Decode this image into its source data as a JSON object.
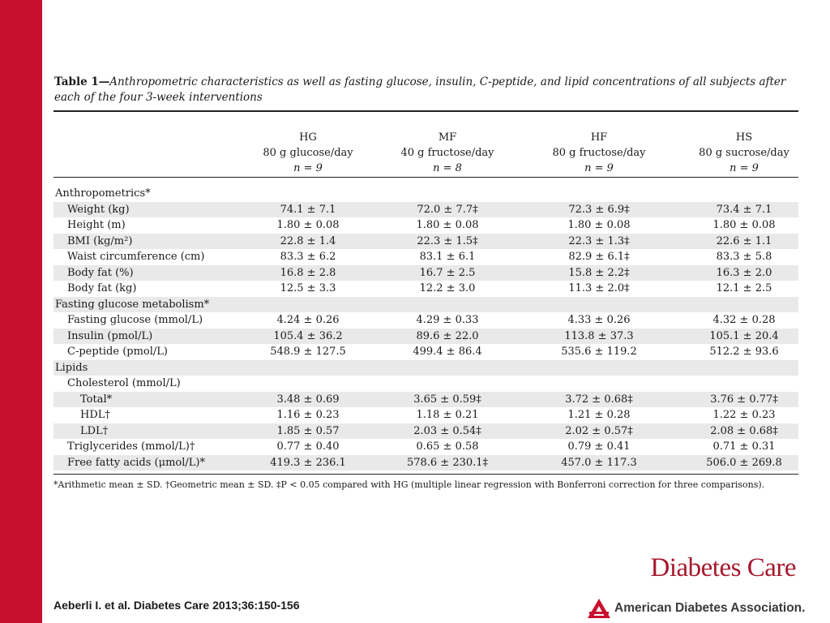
{
  "caption": {
    "lead": "Table 1—",
    "rest": "Anthropometric characteristics as well as fasting glucose, insulin, C-peptide, and lipid concentrations of all subjects after each of the four 3-week interventions"
  },
  "columns": [
    {
      "name": "HG",
      "desc": "80 g glucose/day",
      "n": "n = 9"
    },
    {
      "name": "MF",
      "desc": "40 g fructose/day",
      "n": "n = 8"
    },
    {
      "name": "HF",
      "desc": "80 g fructose/day",
      "n": "n = 9"
    },
    {
      "name": "HS",
      "desc": "80 g sucrose/day",
      "n": "n = 9"
    }
  ],
  "rows": [
    {
      "label": "Anthropometrics*",
      "indent": 0,
      "values": [
        "",
        "",
        "",
        ""
      ]
    },
    {
      "label": "Weight (kg)",
      "indent": 1,
      "values": [
        "74.1 ± 7.1",
        "72.0 ± 7.7‡",
        "72.3 ± 6.9‡",
        "73.4 ± 7.1"
      ]
    },
    {
      "label": "Height (m)",
      "indent": 1,
      "values": [
        "1.80 ± 0.08",
        "1.80 ± 0.08",
        "1.80 ± 0.08",
        "1.80 ± 0.08"
      ]
    },
    {
      "label": "BMI (kg/m²)",
      "indent": 1,
      "values": [
        "22.8 ± 1.4",
        "22.3 ± 1.5‡",
        "22.3 ± 1.3‡",
        "22.6 ± 1.1"
      ]
    },
    {
      "label": "Waist circumference (cm)",
      "indent": 1,
      "values": [
        "83.3 ± 6.2",
        "83.1 ± 6.1",
        "82.9 ± 6.1‡",
        "83.3 ± 5.8"
      ]
    },
    {
      "label": "Body fat (%)",
      "indent": 1,
      "values": [
        "16.8 ± 2.8",
        "16.7 ± 2.5",
        "15.8 ± 2.2‡",
        "16.3 ± 2.0"
      ]
    },
    {
      "label": "Body fat (kg)",
      "indent": 1,
      "values": [
        "12.5 ± 3.3",
        "12.2 ± 3.0",
        "11.3 ± 2.0‡",
        "12.1 ± 2.5"
      ]
    },
    {
      "label": "Fasting glucose metabolism*",
      "indent": 0,
      "values": [
        "",
        "",
        "",
        ""
      ]
    },
    {
      "label": "Fasting glucose (mmol/L)",
      "indent": 1,
      "values": [
        "4.24 ± 0.26",
        "4.29 ± 0.33",
        "4.33 ± 0.26",
        "4.32 ± 0.28"
      ]
    },
    {
      "label": "Insulin (pmol/L)",
      "indent": 1,
      "values": [
        "105.4 ± 36.2",
        "89.6 ± 22.0",
        "113.8 ± 37.3",
        "105.1 ± 20.4"
      ]
    },
    {
      "label": "C-peptide (pmol/L)",
      "indent": 1,
      "values": [
        "548.9 ± 127.5",
        "499.4 ± 86.4",
        "535.6 ± 119.2",
        "512.2 ± 93.6"
      ]
    },
    {
      "label": "Lipids",
      "indent": 0,
      "values": [
        "",
        "",
        "",
        ""
      ]
    },
    {
      "label": "Cholesterol (mmol/L)",
      "indent": 1,
      "values": [
        "",
        "",
        "",
        ""
      ]
    },
    {
      "label": "Total*",
      "indent": 2,
      "values": [
        "3.48 ± 0.69",
        "3.65 ± 0.59‡",
        "3.72 ± 0.68‡",
        "3.76 ± 0.77‡"
      ]
    },
    {
      "label": "HDL†",
      "indent": 2,
      "values": [
        "1.16 ± 0.23",
        "1.18 ± 0.21",
        "1.21 ± 0.28",
        "1.22 ± 0.23"
      ]
    },
    {
      "label": "LDL†",
      "indent": 2,
      "values": [
        "1.85 ± 0.57",
        "2.03 ± 0.54‡",
        "2.02 ± 0.57‡",
        "2.08 ± 0.68‡"
      ]
    },
    {
      "label": "Triglycerides (mmol/L)†",
      "indent": 1,
      "values": [
        "0.77 ± 0.40",
        "0.65 ± 0.58",
        "0.79 ± 0.41",
        "0.71 ± 0.31"
      ]
    },
    {
      "label": "Free fatty acids (μmol/L)*",
      "indent": 1,
      "values": [
        "419.3 ± 236.1",
        "578.6 ± 230.1‡",
        "457.0 ± 117.3",
        "506.0 ± 269.8"
      ]
    }
  ],
  "footnote": "*Arithmetic mean ± SD. †Geometric mean ± SD. ‡P < 0.05 compared with HG (multiple linear regression with Bonferroni correction for three comparisons).",
  "citation": "Aeberli I. et al. Diabetes Care 2013;36:150-156",
  "brand": {
    "journal": "Diabetes Care",
    "association": "American Diabetes Association."
  },
  "colors": {
    "accent_bar": "#c8102e",
    "journal_red": "#a6192e",
    "row_shade": "#e9e9e9"
  }
}
